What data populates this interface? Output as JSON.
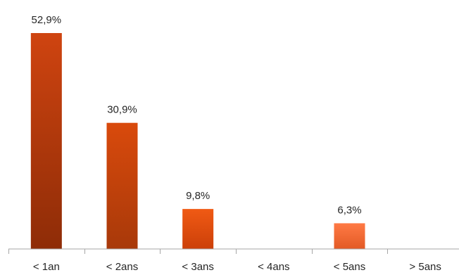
{
  "chart_data": {
    "type": "bar",
    "categories": [
      "< 1an",
      "< 2ans",
      "< 3ans",
      "< 4ans",
      "< 5ans",
      "> 5ans"
    ],
    "values": [
      52.9,
      30.9,
      9.8,
      null,
      6.3,
      null
    ],
    "data_labels": [
      "52,9%",
      "30,9%",
      "9,8%",
      "",
      "6,3%",
      ""
    ],
    "bar_gradients": [
      [
        "#cf4410",
        "#8e2c07"
      ],
      [
        "#d94a0c",
        "#a8390a"
      ],
      [
        "#f05a14",
        "#cc4009"
      ],
      [
        "#ee5a1e",
        "#cc4009"
      ],
      [
        "#ff7a45",
        "#e35a25"
      ],
      [
        "#ff7a45",
        "#e35a25"
      ]
    ],
    "axis_color": "#a6a6a6",
    "ylim": [
      0,
      60
    ]
  }
}
